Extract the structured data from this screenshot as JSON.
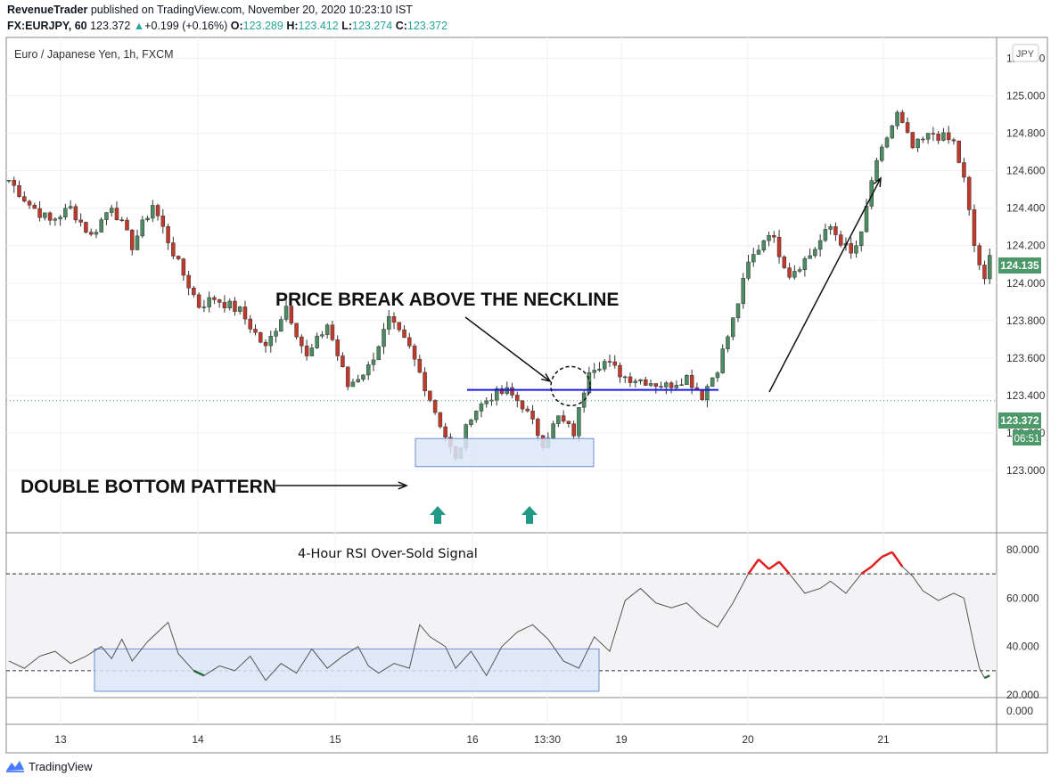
{
  "header": {
    "publisher": "RevenueTrader",
    "published_text": "published on TradingView.com, November 20, 2020 10:23:10 IST",
    "symbol": "FX:EURJPY, 60",
    "last": "123.372",
    "change_arrow": "▲",
    "change": "+0.199 (+0.16%)",
    "o_label": "O:",
    "o": "123.289",
    "h_label": "H:",
    "h": "123.412",
    "l_label": "L:",
    "l": "123.274",
    "c_label": "C:",
    "c": "123.372"
  },
  "pane_title": "Euro / Japanese Yen, 1h, FXCM",
  "currency_badge": "JPY",
  "price_badges": {
    "current": "124.135",
    "last": "123.372",
    "countdown": "06:51"
  },
  "annotations": {
    "neckline": "PRICE BREAK ABOVE THE NECKLINE",
    "double_bottom": "DOUBLE BOTTOM PATTERN",
    "rsi_signal": "4-Hour RSI Over-Sold Signal"
  },
  "footer": {
    "brand": "TradingView"
  },
  "colors": {
    "up": "#4c8c62",
    "down": "#c0392b",
    "neckline": "#1a1ae6",
    "box_fill": "#dbe6f8",
    "box_stroke": "#6f8fd6",
    "arrow_teal": "#1f9a86",
    "rsi_line": "#555555",
    "rsi_over": "#e02020",
    "rsi_under": "#2e6b3c",
    "badge_green": "#4c9a6a"
  },
  "chart_data": [
    {
      "type": "candlestick",
      "title": "Euro / Japanese Yen, 1h, FXCM",
      "ylim": [
        122.8,
        125.25
      ],
      "y_ticks": [
        "125.200",
        "125.000",
        "124.800",
        "124.600",
        "124.400",
        "124.200",
        "124.000",
        "123.800",
        "123.600",
        "123.400",
        "123.200",
        "123.000"
      ],
      "x_ticks": [
        "13",
        "14",
        "15",
        "16",
        "13:30",
        "19",
        "20",
        "21"
      ],
      "neckline": 123.43,
      "current_price": 124.135,
      "last_price": 123.372,
      "close_path": [
        [
          0,
          124.55
        ],
        [
          4,
          124.42
        ],
        [
          8,
          124.33
        ],
        [
          12,
          124.4
        ],
        [
          16,
          124.25
        ],
        [
          20,
          124.42
        ],
        [
          24,
          124.2
        ],
        [
          28,
          124.42
        ],
        [
          33,
          124.1
        ],
        [
          37,
          123.88
        ],
        [
          40,
          123.92
        ],
        [
          45,
          123.85
        ],
        [
          50,
          123.65
        ],
        [
          54,
          123.88
        ],
        [
          58,
          123.6
        ],
        [
          62,
          123.78
        ],
        [
          66,
          123.45
        ],
        [
          70,
          123.55
        ],
        [
          74,
          123.8
        ],
        [
          78,
          123.65
        ],
        [
          80,
          123.52
        ],
        [
          84,
          123.25
        ],
        [
          87,
          123.05
        ],
        [
          90,
          123.3
        ],
        [
          94,
          123.4
        ],
        [
          97,
          123.42
        ],
        [
          100,
          123.35
        ],
        [
          104,
          123.15
        ],
        [
          107,
          123.28
        ],
        [
          110,
          123.2
        ],
        [
          113,
          123.55
        ],
        [
          116,
          123.58
        ],
        [
          120,
          123.5
        ],
        [
          124,
          123.48
        ],
        [
          128,
          123.45
        ],
        [
          132,
          123.5
        ],
        [
          135,
          123.4
        ],
        [
          138,
          123.55
        ],
        [
          141,
          123.8
        ],
        [
          144,
          124.1
        ],
        [
          148,
          124.28
        ],
        [
          152,
          124.05
        ],
        [
          156,
          124.15
        ],
        [
          160,
          124.3
        ],
        [
          164,
          124.15
        ],
        [
          166,
          124.25
        ],
        [
          168,
          124.55
        ],
        [
          171,
          124.78
        ],
        [
          173,
          124.9
        ],
        [
          176,
          124.72
        ],
        [
          180,
          124.8
        ],
        [
          184,
          124.75
        ],
        [
          186,
          124.55
        ],
        [
          188,
          124.2
        ],
        [
          190,
          124.0
        ],
        [
          191,
          124.135
        ]
      ],
      "series": [
        {
          "name": "EURJPY",
          "note": "hourly candles approximating the plotted path"
        }
      ]
    },
    {
      "type": "line",
      "ylim": [
        20,
        85
      ],
      "y_ticks": [
        "80.000",
        "60.000",
        "40.000",
        "20.000"
      ],
      "levels": [
        70,
        30
      ],
      "rsi_path": [
        [
          0,
          34
        ],
        [
          3,
          31
        ],
        [
          6,
          36
        ],
        [
          9,
          38
        ],
        [
          12,
          33
        ],
        [
          15,
          36
        ],
        [
          18,
          40
        ],
        [
          20,
          35
        ],
        [
          22,
          43
        ],
        [
          24,
          34
        ],
        [
          27,
          42
        ],
        [
          29,
          46
        ],
        [
          31,
          50
        ],
        [
          33,
          37
        ],
        [
          36,
          30
        ],
        [
          38,
          28
        ],
        [
          41,
          32
        ],
        [
          44,
          30
        ],
        [
          47,
          36
        ],
        [
          50,
          26
        ],
        [
          53,
          33
        ],
        [
          56,
          29
        ],
        [
          59,
          39
        ],
        [
          62,
          31
        ],
        [
          65,
          36
        ],
        [
          68,
          40
        ],
        [
          70,
          32
        ],
        [
          72,
          29
        ],
        [
          75,
          33
        ],
        [
          78,
          31
        ],
        [
          80,
          49
        ],
        [
          82,
          44
        ],
        [
          85,
          40
        ],
        [
          87,
          31
        ],
        [
          90,
          38
        ],
        [
          93,
          28
        ],
        [
          96,
          40
        ],
        [
          99,
          46
        ],
        [
          102,
          49
        ],
        [
          105,
          43
        ],
        [
          108,
          34
        ],
        [
          111,
          31
        ],
        [
          114,
          44
        ],
        [
          117,
          38
        ],
        [
          120,
          59
        ],
        [
          123,
          64
        ],
        [
          126,
          58
        ],
        [
          129,
          56
        ],
        [
          132,
          58
        ],
        [
          135,
          52
        ],
        [
          138,
          48
        ],
        [
          141,
          58
        ],
        [
          144,
          70
        ],
        [
          146,
          76
        ],
        [
          148,
          72
        ],
        [
          150,
          75
        ],
        [
          152,
          70
        ],
        [
          155,
          62
        ],
        [
          158,
          64
        ],
        [
          160,
          67
        ],
        [
          163,
          62
        ],
        [
          166,
          70
        ],
        [
          168,
          73
        ],
        [
          170,
          77
        ],
        [
          172,
          79
        ],
        [
          174,
          73
        ],
        [
          176,
          69
        ],
        [
          178,
          63
        ],
        [
          181,
          59
        ],
        [
          184,
          62
        ],
        [
          186,
          60
        ],
        [
          188,
          40
        ],
        [
          189,
          31
        ],
        [
          190,
          27
        ],
        [
          191,
          28
        ]
      ],
      "value_labels": [
        "0.000"
      ]
    }
  ]
}
